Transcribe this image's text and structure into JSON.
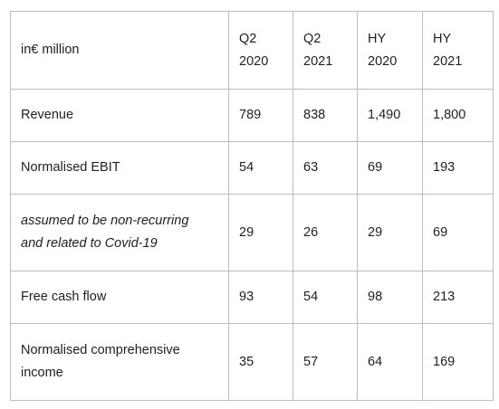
{
  "table": {
    "header": {
      "label": "in€ million",
      "columns": [
        {
          "line1": "Q2",
          "line2": "2020"
        },
        {
          "line1": "Q2",
          "line2": "2021"
        },
        {
          "line1": "HY",
          "line2": "2020"
        },
        {
          "line1": "HY",
          "line2": "2021"
        }
      ]
    },
    "rows": [
      {
        "label_line1": "Revenue",
        "label_line2": "",
        "values": [
          "789",
          "838",
          "1,490",
          "1,800"
        ]
      },
      {
        "label_line1": "Normalised EBIT",
        "label_line2": "",
        "values": [
          "54",
          "63",
          "69",
          "193"
        ]
      },
      {
        "label_line1": "assumed to be non-recurring",
        "label_line2": "and related to Covid-19",
        "values": [
          "29",
          "26",
          "29",
          "69"
        ]
      },
      {
        "label_line1": "Free cash flow",
        "label_line2": "",
        "values": [
          "93",
          "54",
          "98",
          "213"
        ]
      },
      {
        "label_line1": "Normalised comprehensive",
        "label_line2": "income",
        "values": [
          "35",
          "57",
          "64",
          "169"
        ]
      }
    ]
  }
}
